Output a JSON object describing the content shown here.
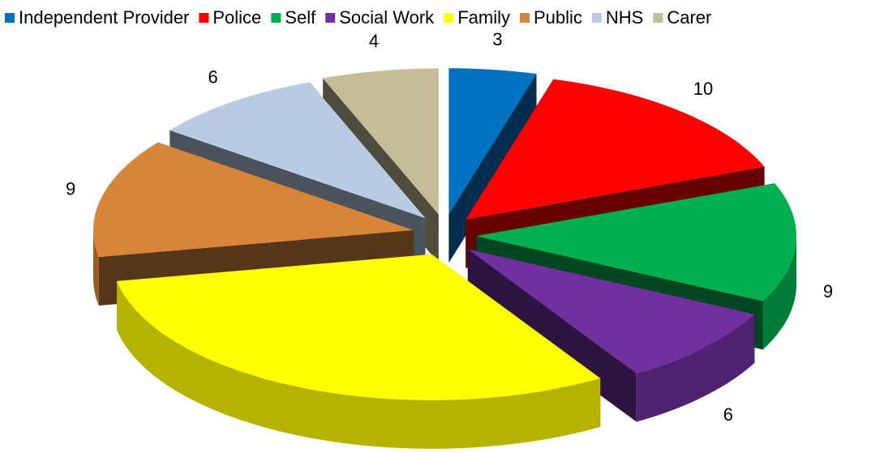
{
  "chart_data": {
    "type": "pie",
    "categories": [
      "Independent Provider",
      "Police",
      "Self",
      "Social Work",
      "Family",
      "Public",
      "NHS",
      "Carer"
    ],
    "values": [
      3,
      10,
      9,
      6,
      21,
      9,
      6,
      4
    ],
    "colors": [
      "#0070c0",
      "#ff0000",
      "#00b050",
      "#7030a0",
      "#ffff00",
      "#d9843b",
      "#b8cce4",
      "#c4bd97"
    ],
    "legend": "top"
  }
}
